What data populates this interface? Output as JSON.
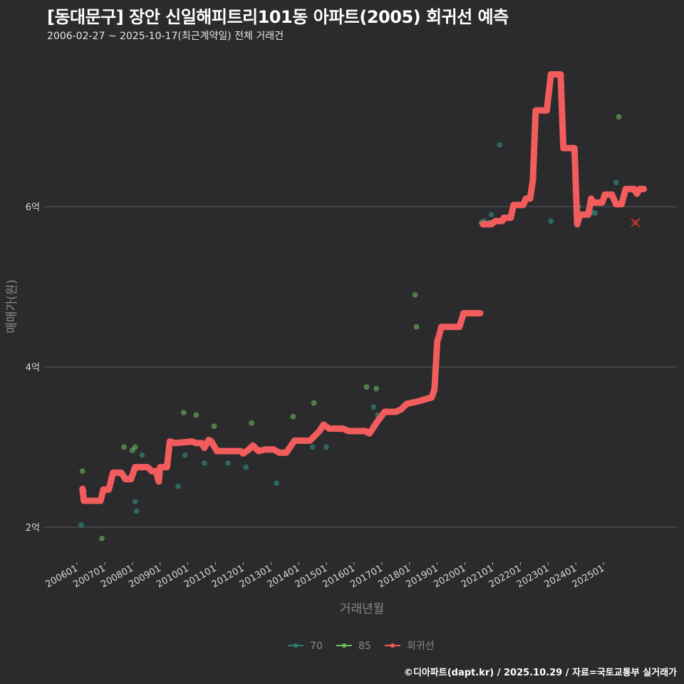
{
  "header": {
    "title": "[동대문구] 장안 신일해피트리101동 아파트(2005) 회귀선 예측",
    "subtitle": "2006-02-27 ~ 2025-10-17(최근계약일) 전체 거래건"
  },
  "footer": {
    "credit": "©디아파트(dapt.kr) / 2025.10.29 / 자료=국토교통부 실거래가"
  },
  "colors": {
    "background": "#2b2a2c",
    "grid": "#5a5a5a",
    "series_70": "#2f7f6f",
    "series_85": "#6fbf5f",
    "regression": "#f25c5c",
    "prediction_marker": "#c0392b"
  },
  "chart_data": {
    "type": "line",
    "title": "[동대문구] 장안 신일해피트리101동 아파트(2005) 회귀선 예측",
    "subtitle": "2006-02-27 ~ 2025-10-17(최근계약일) 전체 거래건",
    "xlabel": "거래년월",
    "ylabel": "매매가(원)",
    "ylim": [
      1.55,
      7.9
    ],
    "yticks": [
      {
        "value": 2,
        "label": "2억"
      },
      {
        "value": 4,
        "label": "4억"
      },
      {
        "value": 6,
        "label": "6억"
      }
    ],
    "xticks": [
      "200601",
      "200701",
      "200801",
      "200901",
      "201001",
      "201101",
      "201201",
      "201301",
      "201401",
      "201501",
      "201601",
      "201701",
      "201801",
      "201901",
      "202001",
      "202101",
      "202201",
      "202301",
      "202401",
      "202501"
    ],
    "grid": true,
    "legend": {
      "position": "bottom",
      "entries": [
        "70",
        "85",
        "회귀선"
      ]
    },
    "series": [
      {
        "name": "70",
        "type": "scatter",
        "points": [
          [
            2006.15,
            2.03
          ],
          [
            2008.1,
            2.32
          ],
          [
            2008.15,
            2.2
          ],
          [
            2008.35,
            2.9
          ],
          [
            2009.65,
            2.51
          ],
          [
            2009.9,
            2.9
          ],
          [
            2010.6,
            2.8
          ],
          [
            2011.45,
            2.8
          ],
          [
            2012.1,
            2.75
          ],
          [
            2013.2,
            2.55
          ],
          [
            2014.5,
            3.0
          ],
          [
            2015.0,
            3.0
          ],
          [
            2016.05,
            3.2
          ],
          [
            2016.7,
            3.5
          ],
          [
            2016.85,
            3.4
          ],
          [
            2020.7,
            5.82
          ],
          [
            2020.95,
            5.9
          ],
          [
            2021.25,
            6.77
          ],
          [
            2023.1,
            5.82
          ],
          [
            2024.1,
            6.0
          ],
          [
            2024.6,
            5.93
          ],
          [
            2024.7,
            5.92
          ],
          [
            2025.45,
            6.3
          ]
        ]
      },
      {
        "name": "85",
        "type": "scatter",
        "points": [
          [
            2006.2,
            2.7
          ],
          [
            2006.25,
            2.45
          ],
          [
            2006.9,
            1.86
          ],
          [
            2007.7,
            3.0
          ],
          [
            2008.0,
            2.96
          ],
          [
            2008.1,
            3.0
          ],
          [
            2009.85,
            3.43
          ],
          [
            2010.3,
            3.4
          ],
          [
            2010.95,
            3.26
          ],
          [
            2012.3,
            3.3
          ],
          [
            2013.8,
            3.38
          ],
          [
            2014.55,
            3.55
          ],
          [
            2016.45,
            3.75
          ],
          [
            2016.8,
            3.73
          ],
          [
            2018.2,
            4.9
          ],
          [
            2018.25,
            4.5
          ],
          [
            2020.6,
            5.8
          ],
          [
            2020.9,
            5.8
          ],
          [
            2025.55,
            7.12
          ]
        ]
      },
      {
        "name": "회귀선",
        "type": "line",
        "points": [
          [
            2006.2,
            2.48
          ],
          [
            2006.25,
            2.33
          ],
          [
            2006.85,
            2.33
          ],
          [
            2006.95,
            2.47
          ],
          [
            2007.15,
            2.47
          ],
          [
            2007.3,
            2.68
          ],
          [
            2007.6,
            2.68
          ],
          [
            2007.75,
            2.6
          ],
          [
            2007.95,
            2.6
          ],
          [
            2008.1,
            2.75
          ],
          [
            2008.55,
            2.75
          ],
          [
            2008.7,
            2.7
          ],
          [
            2008.85,
            2.7
          ],
          [
            2008.95,
            2.57
          ],
          [
            2009.0,
            2.75
          ],
          [
            2009.25,
            2.75
          ],
          [
            2009.35,
            3.07
          ],
          [
            2009.55,
            3.05
          ],
          [
            2010.15,
            3.07
          ],
          [
            2010.3,
            3.05
          ],
          [
            2010.5,
            3.05
          ],
          [
            2010.6,
            2.99
          ],
          [
            2010.75,
            3.09
          ],
          [
            2010.85,
            3.07
          ],
          [
            2011.05,
            2.95
          ],
          [
            2011.9,
            2.95
          ],
          [
            2012.0,
            2.92
          ],
          [
            2012.2,
            2.97
          ],
          [
            2012.35,
            3.02
          ],
          [
            2012.55,
            2.95
          ],
          [
            2012.8,
            2.97
          ],
          [
            2013.1,
            2.97
          ],
          [
            2013.3,
            2.93
          ],
          [
            2013.55,
            2.93
          ],
          [
            2013.85,
            3.08
          ],
          [
            2014.4,
            3.08
          ],
          [
            2014.55,
            3.13
          ],
          [
            2014.75,
            3.2
          ],
          [
            2014.9,
            3.28
          ],
          [
            2015.1,
            3.23
          ],
          [
            2015.6,
            3.23
          ],
          [
            2015.8,
            3.2
          ],
          [
            2016.4,
            3.2
          ],
          [
            2016.55,
            3.17
          ],
          [
            2016.65,
            3.22
          ],
          [
            2016.8,
            3.3
          ],
          [
            2017.1,
            3.44
          ],
          [
            2017.5,
            3.44
          ],
          [
            2017.7,
            3.47
          ],
          [
            2017.9,
            3.54
          ],
          [
            2018.3,
            3.57
          ],
          [
            2018.6,
            3.6
          ],
          [
            2018.8,
            3.62
          ],
          [
            2018.9,
            3.72
          ],
          [
            2019.0,
            4.32
          ],
          [
            2019.05,
            4.37
          ],
          [
            2019.15,
            4.5
          ],
          [
            2019.8,
            4.5
          ],
          [
            2019.95,
            4.67
          ],
          [
            2020.55,
            4.67
          ]
        ]
      },
      {
        "name": "회귀선-2",
        "type": "line",
        "points": [
          [
            2020.65,
            5.78
          ],
          [
            2020.95,
            5.78
          ],
          [
            2021.1,
            5.82
          ],
          [
            2021.35,
            5.82
          ],
          [
            2021.4,
            5.86
          ],
          [
            2021.65,
            5.86
          ],
          [
            2021.75,
            6.02
          ],
          [
            2022.1,
            6.02
          ],
          [
            2022.2,
            6.1
          ],
          [
            2022.35,
            6.1
          ],
          [
            2022.45,
            6.33
          ],
          [
            2022.55,
            7.2
          ],
          [
            2022.95,
            7.2
          ],
          [
            2023.1,
            7.65
          ],
          [
            2023.45,
            7.65
          ],
          [
            2023.55,
            6.73
          ],
          [
            2023.95,
            6.73
          ],
          [
            2024.05,
            5.78
          ],
          [
            2024.15,
            5.9
          ],
          [
            2024.45,
            5.9
          ],
          [
            2024.55,
            6.1
          ],
          [
            2024.65,
            6.05
          ],
          [
            2024.95,
            6.05
          ],
          [
            2025.05,
            6.15
          ],
          [
            2025.3,
            6.15
          ],
          [
            2025.45,
            6.03
          ],
          [
            2025.65,
            6.03
          ],
          [
            2025.8,
            6.22
          ],
          [
            2026.1,
            6.22
          ],
          [
            2026.2,
            6.16
          ],
          [
            2026.3,
            6.22
          ],
          [
            2026.45,
            6.22
          ]
        ]
      }
    ],
    "prediction_marker": {
      "x": 2026.15,
      "y": 5.8,
      "shape": "x"
    }
  }
}
